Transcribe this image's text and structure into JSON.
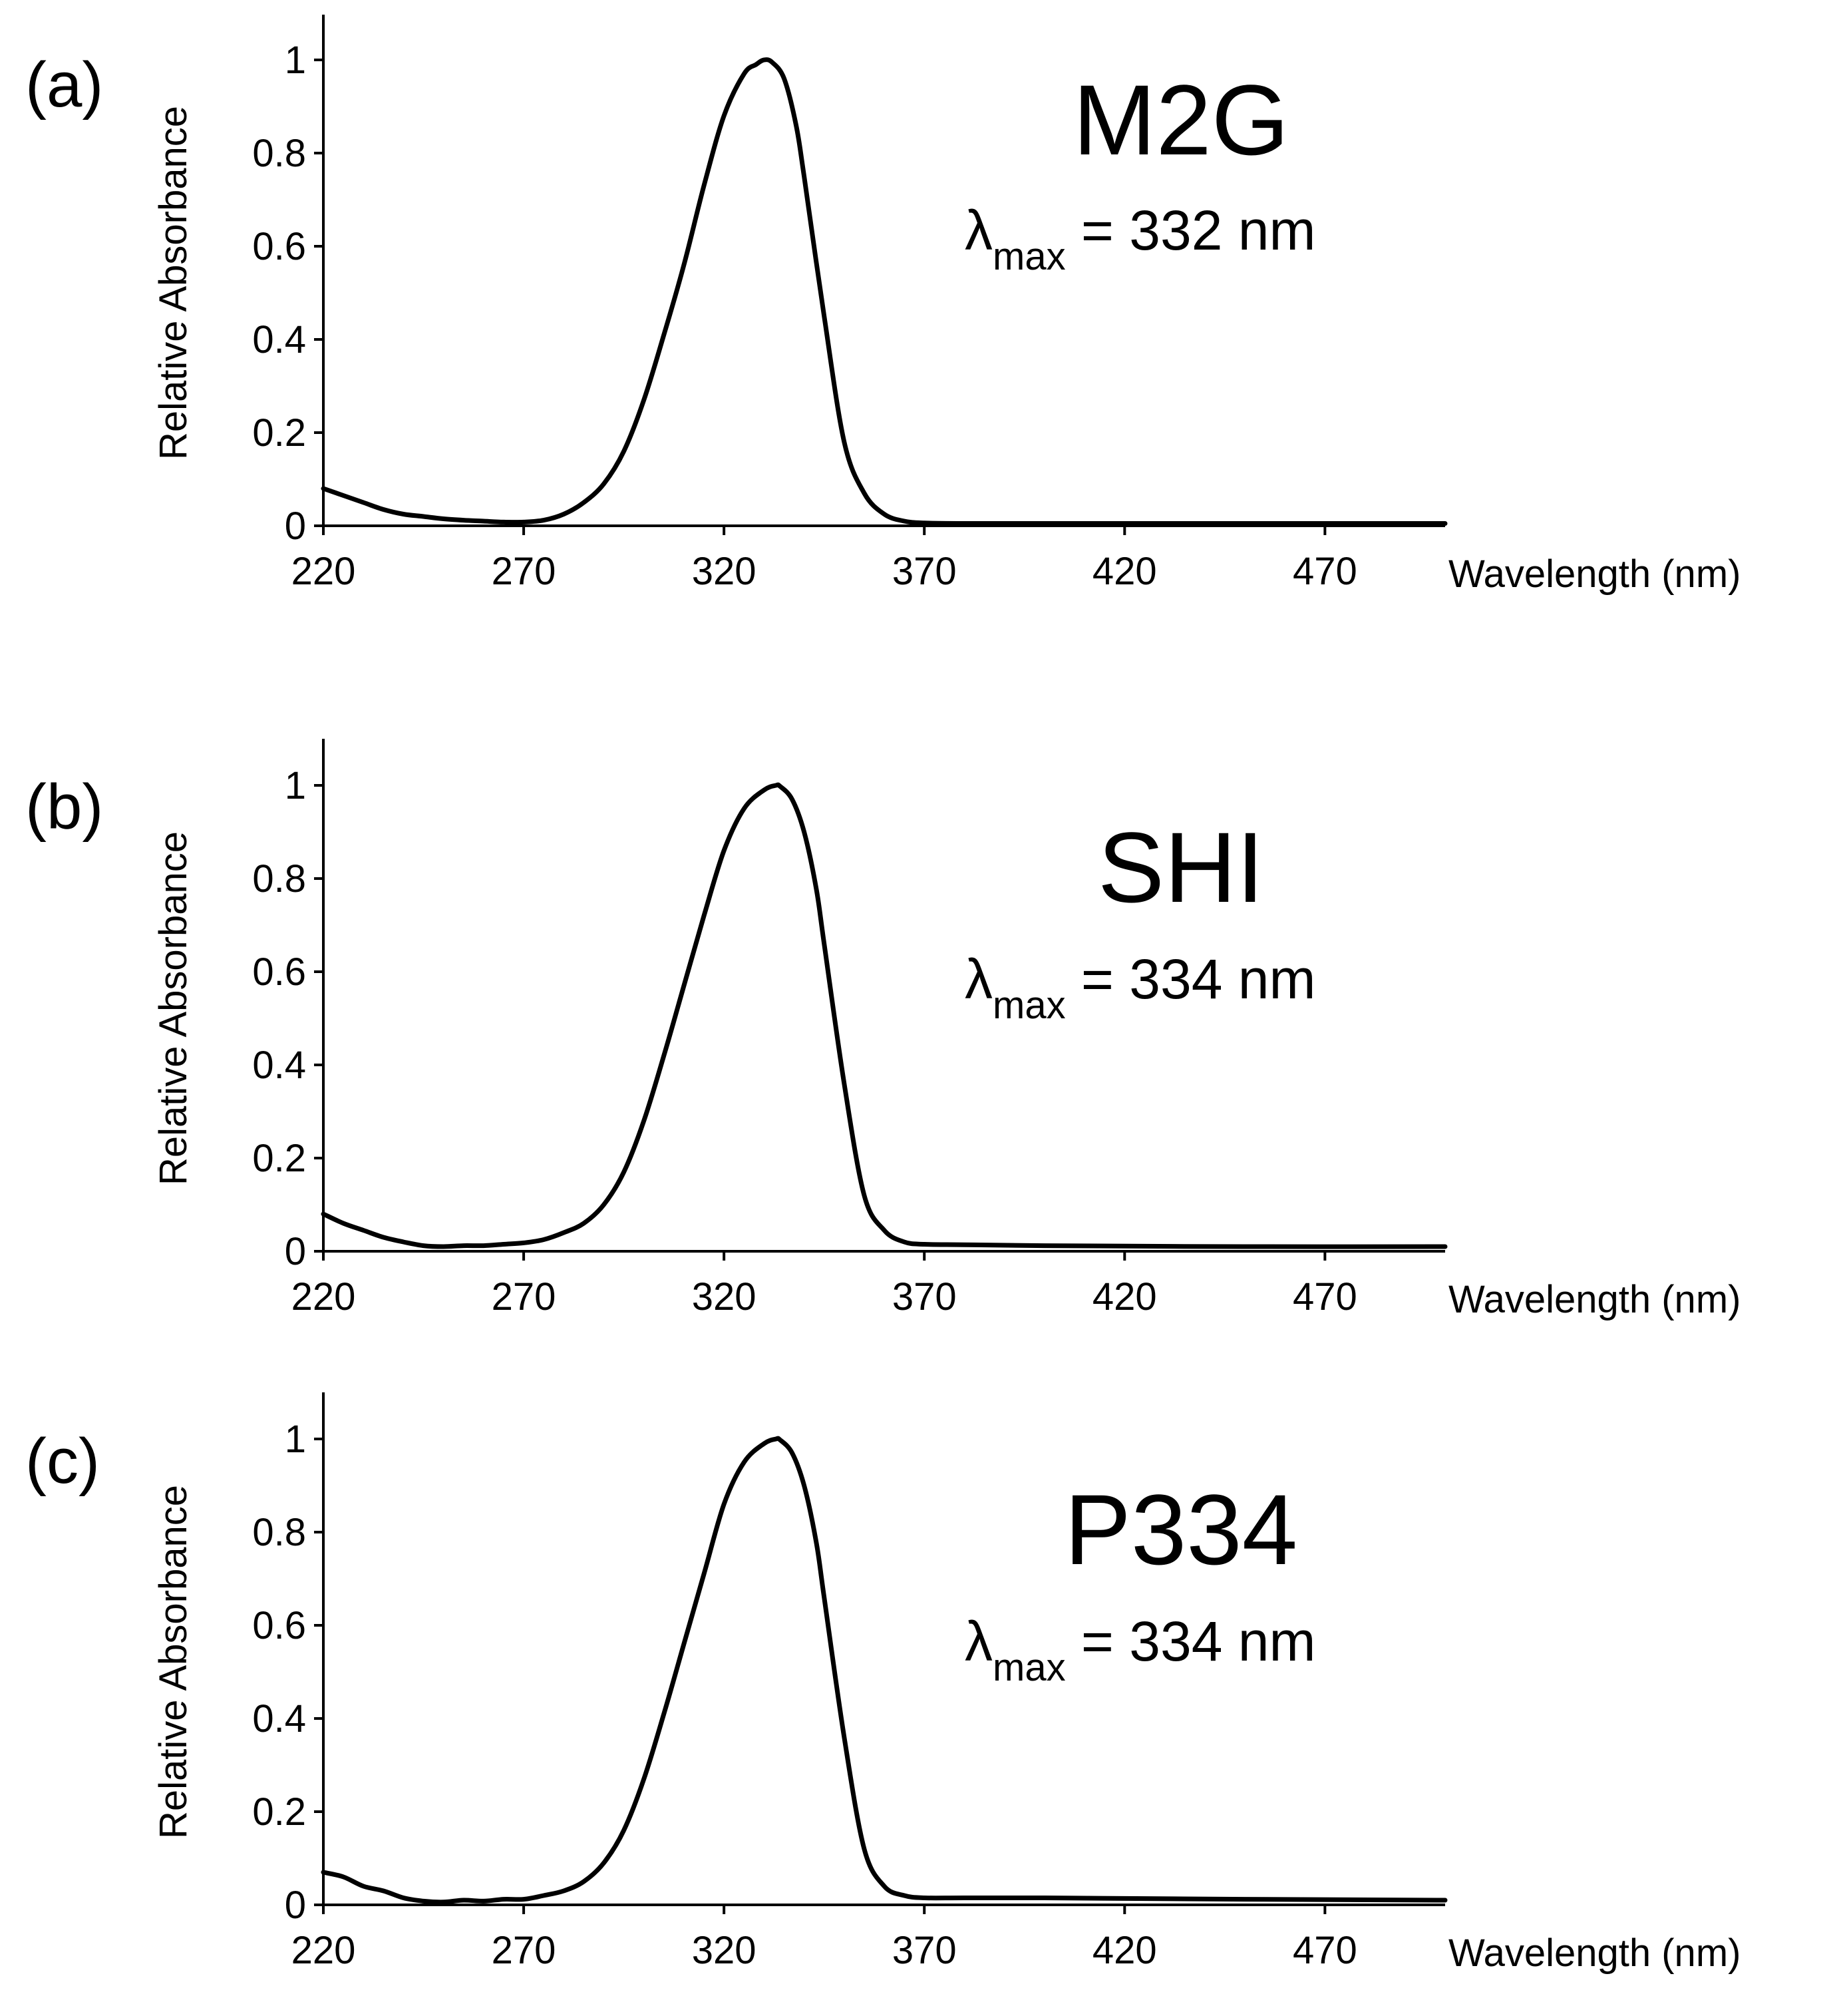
{
  "chart_data": [
    {
      "type": "line",
      "panel_label": "(a)",
      "title": "M2G",
      "annotation": {
        "symbol": "λ",
        "subscript": "max",
        "text": " = 332 nm"
      },
      "xlabel": "Wavelength (nm)",
      "ylabel": "Relative Absorbance",
      "xlim": [
        220,
        500
      ],
      "ylim": [
        0,
        1.1
      ],
      "xticks": [
        "220",
        "270",
        "320",
        "370",
        "420",
        "470"
      ],
      "yticks": [
        "0",
        "0.2",
        "0.4",
        "0.6",
        "0.8",
        "1"
      ],
      "grid": false,
      "series": [
        {
          "name": "M2G",
          "x": [
            220,
            225,
            230,
            235,
            240,
            245,
            250,
            255,
            260,
            265,
            270,
            275,
            280,
            285,
            290,
            295,
            300,
            305,
            310,
            315,
            320,
            325,
            328,
            330,
            332,
            335,
            338,
            340,
            345,
            350,
            355,
            360,
            365,
            370,
            380,
            400,
            450,
            500
          ],
          "y": [
            0.08,
            0.065,
            0.05,
            0.035,
            0.025,
            0.02,
            0.015,
            0.012,
            0.01,
            0.008,
            0.008,
            0.012,
            0.025,
            0.05,
            0.09,
            0.16,
            0.27,
            0.41,
            0.56,
            0.73,
            0.88,
            0.97,
            0.99,
            1.0,
            0.995,
            0.96,
            0.86,
            0.75,
            0.45,
            0.18,
            0.07,
            0.025,
            0.01,
            0.006,
            0.005,
            0.005,
            0.005,
            0.005
          ]
        }
      ]
    },
    {
      "type": "line",
      "panel_label": "(b)",
      "title": "SHI",
      "annotation": {
        "symbol": "λ",
        "subscript": "max",
        "text": " = 334 nm"
      },
      "xlabel": "Wavelength (nm)",
      "ylabel": "Relative Absorbance",
      "xlim": [
        220,
        500
      ],
      "ylim": [
        0,
        1.1
      ],
      "xticks": [
        "220",
        "270",
        "320",
        "370",
        "420",
        "470"
      ],
      "yticks": [
        "0",
        "0.2",
        "0.4",
        "0.6",
        "0.8",
        "1"
      ],
      "grid": false,
      "series": [
        {
          "name": "SHI",
          "x": [
            220,
            225,
            230,
            235,
            240,
            245,
            250,
            255,
            260,
            265,
            270,
            275,
            280,
            285,
            290,
            295,
            300,
            305,
            310,
            315,
            320,
            325,
            330,
            333,
            334,
            337,
            340,
            343,
            345,
            350,
            355,
            360,
            365,
            370,
            380,
            400,
            450,
            500
          ],
          "y": [
            0.08,
            0.06,
            0.045,
            0.03,
            0.02,
            0.012,
            0.01,
            0.012,
            0.012,
            0.015,
            0.018,
            0.025,
            0.04,
            0.06,
            0.1,
            0.17,
            0.28,
            0.42,
            0.57,
            0.72,
            0.86,
            0.95,
            0.99,
            1.0,
            0.998,
            0.97,
            0.9,
            0.78,
            0.66,
            0.36,
            0.12,
            0.045,
            0.02,
            0.015,
            0.014,
            0.012,
            0.01,
            0.01
          ]
        }
      ]
    },
    {
      "type": "line",
      "panel_label": "(c)",
      "title": "P334",
      "annotation": {
        "symbol": "λ",
        "subscript": "max",
        "text": " = 334 nm"
      },
      "xlabel": "Wavelength (nm)",
      "ylabel": "Relative Absorbance",
      "xlim": [
        220,
        500
      ],
      "ylim": [
        0,
        1.1
      ],
      "xticks": [
        "220",
        "270",
        "320",
        "370",
        "420",
        "470"
      ],
      "yticks": [
        "0",
        "0.2",
        "0.4",
        "0.6",
        "0.8",
        "1"
      ],
      "grid": false,
      "series": [
        {
          "name": "P334",
          "x": [
            220,
            225,
            230,
            235,
            240,
            245,
            250,
            255,
            260,
            265,
            270,
            275,
            280,
            285,
            290,
            295,
            300,
            305,
            310,
            315,
            320,
            325,
            330,
            333,
            334,
            337,
            340,
            343,
            345,
            350,
            355,
            360,
            365,
            370,
            380,
            400,
            450,
            500
          ],
          "y": [
            0.07,
            0.06,
            0.04,
            0.03,
            0.015,
            0.008,
            0.006,
            0.01,
            0.008,
            0.012,
            0.012,
            0.02,
            0.03,
            0.05,
            0.09,
            0.16,
            0.27,
            0.41,
            0.56,
            0.71,
            0.86,
            0.95,
            0.99,
            1.0,
            0.998,
            0.97,
            0.9,
            0.78,
            0.66,
            0.36,
            0.12,
            0.04,
            0.02,
            0.015,
            0.015,
            0.015,
            0.012,
            0.01
          ]
        }
      ]
    }
  ]
}
